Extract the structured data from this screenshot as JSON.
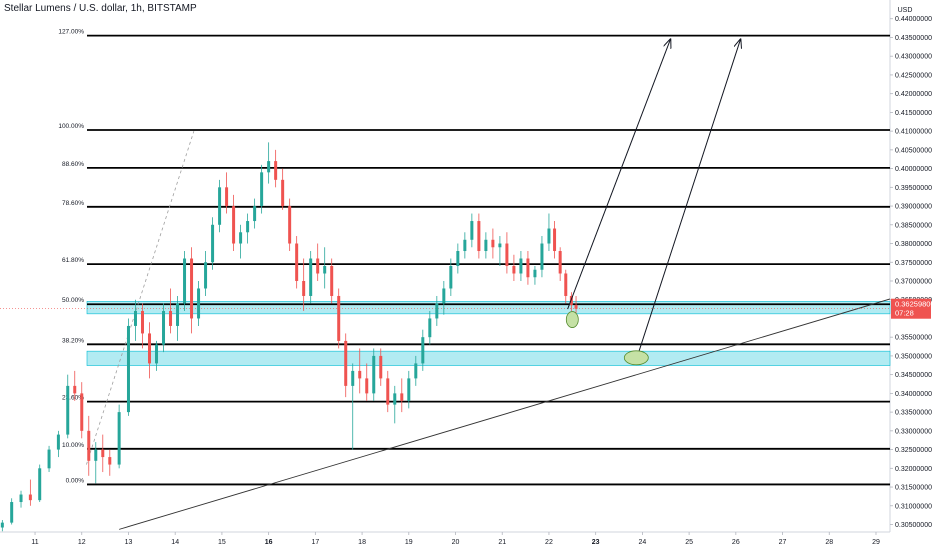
{
  "header": {
    "title": "Stellar Lumens / U.S. dollar, 1h, BITSTAMP"
  },
  "colors": {
    "up": "#26a69a",
    "down": "#ef5350",
    "zone": "#b2ebf2",
    "zone_border": "#00bcd4",
    "price_tag": "#ef5350",
    "ellipse": "#c5e1a5",
    "ellipse_stroke": "#558b2f"
  },
  "chart_data": {
    "type": "candlestick",
    "symbol": "Stellar Lumens / U.S. dollar",
    "interval": "1h",
    "exchange": "BITSTAMP",
    "y_axis": {
      "unit": "USD",
      "range": [
        0.303,
        0.445
      ],
      "ticks": [
        "0.44000000",
        "0.43500000",
        "0.43000000",
        "0.42500000",
        "0.42000000",
        "0.41500000",
        "0.41000000",
        "0.40500000",
        "0.40000000",
        "0.39500000",
        "0.39000000",
        "0.38500000",
        "0.38000000",
        "0.37500000",
        "0.37000000",
        "0.36500000",
        "0.35500000",
        "0.35000000",
        "0.34500000",
        "0.34000000",
        "0.33500000",
        "0.33000000",
        "0.32500000",
        "0.32000000",
        "0.31500000",
        "0.31000000",
        "0.30500000"
      ],
      "tick_values": [
        0.44,
        0.435,
        0.43,
        0.425,
        0.42,
        0.415,
        0.41,
        0.405,
        0.4,
        0.395,
        0.39,
        0.385,
        0.38,
        0.375,
        0.37,
        0.365,
        0.355,
        0.35,
        0.345,
        0.34,
        0.335,
        0.33,
        0.325,
        0.32,
        0.315,
        0.31,
        0.305
      ]
    },
    "x_axis": {
      "labels": [
        "11",
        "12",
        "13",
        "14",
        "15",
        "16",
        "17",
        "18",
        "19",
        "20",
        "21",
        "22",
        "23",
        "24",
        "25",
        "26",
        "27",
        "28",
        "29"
      ],
      "bold": [
        "16",
        "23"
      ],
      "day_range": [
        10.25,
        29.3
      ]
    },
    "current_price": {
      "value": 0.362598,
      "label": "0.36259800",
      "countdown": "07:28"
    },
    "fib_levels": [
      {
        "label": "127.00%",
        "value": 0.4355
      },
      {
        "label": "100.00%",
        "value": 0.4103
      },
      {
        "label": "88.60%",
        "value": 0.4002
      },
      {
        "label": "78.60%",
        "value": 0.3898
      },
      {
        "label": "61.80%",
        "value": 0.3745
      },
      {
        "label": "50.00%",
        "value": 0.3638
      },
      {
        "label": "38.20%",
        "value": 0.3531
      },
      {
        "label": "23.60%",
        "value": 0.3378
      },
      {
        "label": "10.00%",
        "value": 0.3252
      },
      {
        "label": "0.00%",
        "value": 0.3157
      }
    ],
    "zones": [
      {
        "from": 0.3623,
        "to": 0.3635
      },
      {
        "from": 0.3485,
        "to": 0.3502
      }
    ],
    "trendline": {
      "points": [
        [
          12.8,
          0.3037
        ],
        [
          29.3,
          0.3652
        ]
      ]
    },
    "dashed_line": {
      "points": [
        [
          12.1,
          0.321
        ],
        [
          14.4,
          0.41
        ]
      ]
    },
    "arrows": [
      {
        "from": [
          22.4,
          0.3625
        ],
        "to": [
          24.6,
          0.4345
        ]
      },
      {
        "from": [
          23.9,
          0.3502
        ],
        "to": [
          26.1,
          0.4345
        ]
      }
    ],
    "ellipses": [
      {
        "day": 22.5,
        "value": 0.3597
      },
      {
        "day": 23.87,
        "value": 0.3495
      }
    ],
    "candles": [
      [
        10.3,
        0.3042,
        0.3062,
        0.3032,
        0.3055
      ],
      [
        10.5,
        0.3055,
        0.312,
        0.305,
        0.311
      ],
      [
        10.7,
        0.311,
        0.314,
        0.3095,
        0.313
      ],
      [
        10.9,
        0.313,
        0.317,
        0.31,
        0.3115
      ],
      [
        11.1,
        0.3115,
        0.321,
        0.311,
        0.32
      ],
      [
        11.3,
        0.32,
        0.326,
        0.319,
        0.325
      ],
      [
        11.5,
        0.325,
        0.33,
        0.323,
        0.329
      ],
      [
        11.7,
        0.329,
        0.345,
        0.328,
        0.342
      ],
      [
        11.85,
        0.342,
        0.346,
        0.338,
        0.34
      ],
      [
        12.0,
        0.34,
        0.343,
        0.328,
        0.33
      ],
      [
        12.15,
        0.33,
        0.334,
        0.318,
        0.322
      ],
      [
        12.3,
        0.322,
        0.327,
        0.316,
        0.325
      ],
      [
        12.45,
        0.325,
        0.329,
        0.319,
        0.323
      ],
      [
        12.6,
        0.323,
        0.325,
        0.318,
        0.321
      ],
      [
        12.8,
        0.321,
        0.337,
        0.32,
        0.335
      ],
      [
        13.0,
        0.335,
        0.36,
        0.334,
        0.358
      ],
      [
        13.15,
        0.358,
        0.365,
        0.354,
        0.362
      ],
      [
        13.3,
        0.362,
        0.364,
        0.352,
        0.356
      ],
      [
        13.45,
        0.356,
        0.359,
        0.344,
        0.348
      ],
      [
        13.6,
        0.348,
        0.354,
        0.346,
        0.353
      ],
      [
        13.75,
        0.353,
        0.364,
        0.351,
        0.362
      ],
      [
        13.9,
        0.362,
        0.368,
        0.356,
        0.358
      ],
      [
        14.05,
        0.358,
        0.366,
        0.354,
        0.364
      ],
      [
        14.2,
        0.364,
        0.378,
        0.362,
        0.376
      ],
      [
        14.35,
        0.376,
        0.379,
        0.356,
        0.36
      ],
      [
        14.5,
        0.36,
        0.37,
        0.358,
        0.368
      ],
      [
        14.65,
        0.368,
        0.378,
        0.366,
        0.375
      ],
      [
        14.8,
        0.375,
        0.387,
        0.373,
        0.385
      ],
      [
        14.95,
        0.385,
        0.397,
        0.383,
        0.395
      ],
      [
        15.1,
        0.395,
        0.399,
        0.388,
        0.39
      ],
      [
        15.25,
        0.39,
        0.393,
        0.378,
        0.38
      ],
      [
        15.4,
        0.38,
        0.385,
        0.376,
        0.383
      ],
      [
        15.55,
        0.383,
        0.388,
        0.38,
        0.386
      ],
      [
        15.7,
        0.386,
        0.392,
        0.384,
        0.39
      ],
      [
        15.85,
        0.39,
        0.401,
        0.388,
        0.399
      ],
      [
        16.0,
        0.399,
        0.407,
        0.396,
        0.402
      ],
      [
        16.15,
        0.402,
        0.405,
        0.395,
        0.397
      ],
      [
        16.3,
        0.397,
        0.4,
        0.389,
        0.39
      ],
      [
        16.45,
        0.39,
        0.392,
        0.378,
        0.38
      ],
      [
        16.6,
        0.38,
        0.382,
        0.368,
        0.37
      ],
      [
        16.75,
        0.37,
        0.376,
        0.362,
        0.366
      ],
      [
        16.9,
        0.366,
        0.378,
        0.364,
        0.376
      ],
      [
        17.05,
        0.376,
        0.38,
        0.37,
        0.372
      ],
      [
        17.2,
        0.372,
        0.379,
        0.368,
        0.374
      ],
      [
        17.35,
        0.374,
        0.376,
        0.364,
        0.366
      ],
      [
        17.5,
        0.366,
        0.368,
        0.352,
        0.354
      ],
      [
        17.65,
        0.354,
        0.356,
        0.339,
        0.342
      ],
      [
        17.8,
        0.342,
        0.348,
        0.325,
        0.346
      ],
      [
        17.95,
        0.346,
        0.352,
        0.34,
        0.344
      ],
      [
        18.1,
        0.344,
        0.348,
        0.338,
        0.34
      ],
      [
        18.25,
        0.34,
        0.352,
        0.338,
        0.35
      ],
      [
        18.4,
        0.35,
        0.352,
        0.342,
        0.344
      ],
      [
        18.55,
        0.344,
        0.346,
        0.335,
        0.337
      ],
      [
        18.7,
        0.337,
        0.342,
        0.332,
        0.34
      ],
      [
        18.85,
        0.34,
        0.344,
        0.335,
        0.338
      ],
      [
        19.0,
        0.338,
        0.346,
        0.336,
        0.344
      ],
      [
        19.15,
        0.344,
        0.35,
        0.342,
        0.348
      ],
      [
        19.3,
        0.348,
        0.357,
        0.346,
        0.355
      ],
      [
        19.45,
        0.355,
        0.362,
        0.353,
        0.36
      ],
      [
        19.6,
        0.36,
        0.366,
        0.358,
        0.364
      ],
      [
        19.75,
        0.364,
        0.37,
        0.361,
        0.368
      ],
      [
        19.9,
        0.368,
        0.376,
        0.366,
        0.374
      ],
      [
        20.05,
        0.374,
        0.38,
        0.372,
        0.378
      ],
      [
        20.2,
        0.378,
        0.383,
        0.376,
        0.381
      ],
      [
        20.35,
        0.381,
        0.388,
        0.379,
        0.386
      ],
      [
        20.5,
        0.386,
        0.388,
        0.376,
        0.378
      ],
      [
        20.65,
        0.378,
        0.383,
        0.376,
        0.381
      ],
      [
        20.8,
        0.381,
        0.384,
        0.376,
        0.379
      ],
      [
        20.95,
        0.379,
        0.382,
        0.374,
        0.38
      ],
      [
        21.1,
        0.38,
        0.383,
        0.372,
        0.374
      ],
      [
        21.25,
        0.374,
        0.377,
        0.37,
        0.372
      ],
      [
        21.4,
        0.372,
        0.378,
        0.37,
        0.376
      ],
      [
        21.55,
        0.376,
        0.378,
        0.369,
        0.371
      ],
      [
        21.7,
        0.371,
        0.374,
        0.369,
        0.373
      ],
      [
        21.85,
        0.373,
        0.382,
        0.371,
        0.38
      ],
      [
        22.0,
        0.38,
        0.388,
        0.378,
        0.384
      ],
      [
        22.12,
        0.384,
        0.386,
        0.376,
        0.378
      ],
      [
        22.24,
        0.378,
        0.379,
        0.37,
        0.372
      ],
      [
        22.36,
        0.372,
        0.373,
        0.364,
        0.366
      ],
      [
        22.48,
        0.366,
        0.367,
        0.362,
        0.3636
      ],
      [
        22.58,
        0.3636,
        0.366,
        0.3615,
        0.3626
      ]
    ]
  }
}
